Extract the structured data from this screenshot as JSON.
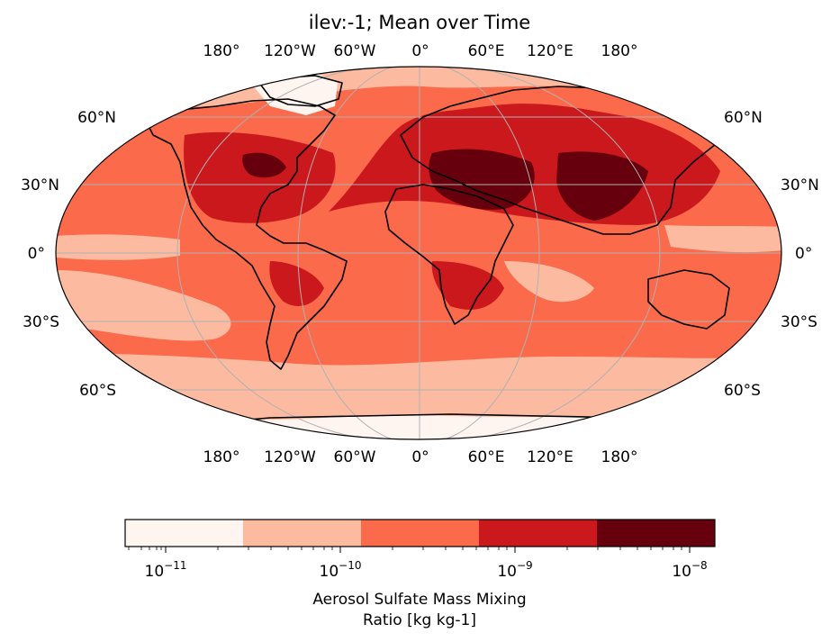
{
  "title": "ilev:-1; Mean over Time",
  "longitude_labels": [
    "180°",
    "120°W",
    "60°W",
    "0°",
    "60°E",
    "120°E",
    "180°"
  ],
  "latitude_labels": [
    "60°N",
    "30°N",
    "0°",
    "30°S",
    "60°S"
  ],
  "colorbar": {
    "label_line1": "Aerosol Sulfate Mass Mixing",
    "label_line2": "Ratio [kg kg-1]",
    "tick_labels": [
      {
        "base": "10",
        "exp": "−11"
      },
      {
        "base": "10",
        "exp": "−10"
      },
      {
        "base": "10",
        "exp": "−9"
      },
      {
        "base": "10",
        "exp": "−8"
      }
    ],
    "bins": [
      {
        "color": "#fff5f0"
      },
      {
        "color": "#fcbba1"
      },
      {
        "color": "#fb6a4a"
      },
      {
        "color": "#cb181d"
      },
      {
        "color": "#67000d"
      }
    ]
  },
  "map": {
    "projection": "Robinson",
    "colormap": "Reds",
    "scale": "log"
  }
}
